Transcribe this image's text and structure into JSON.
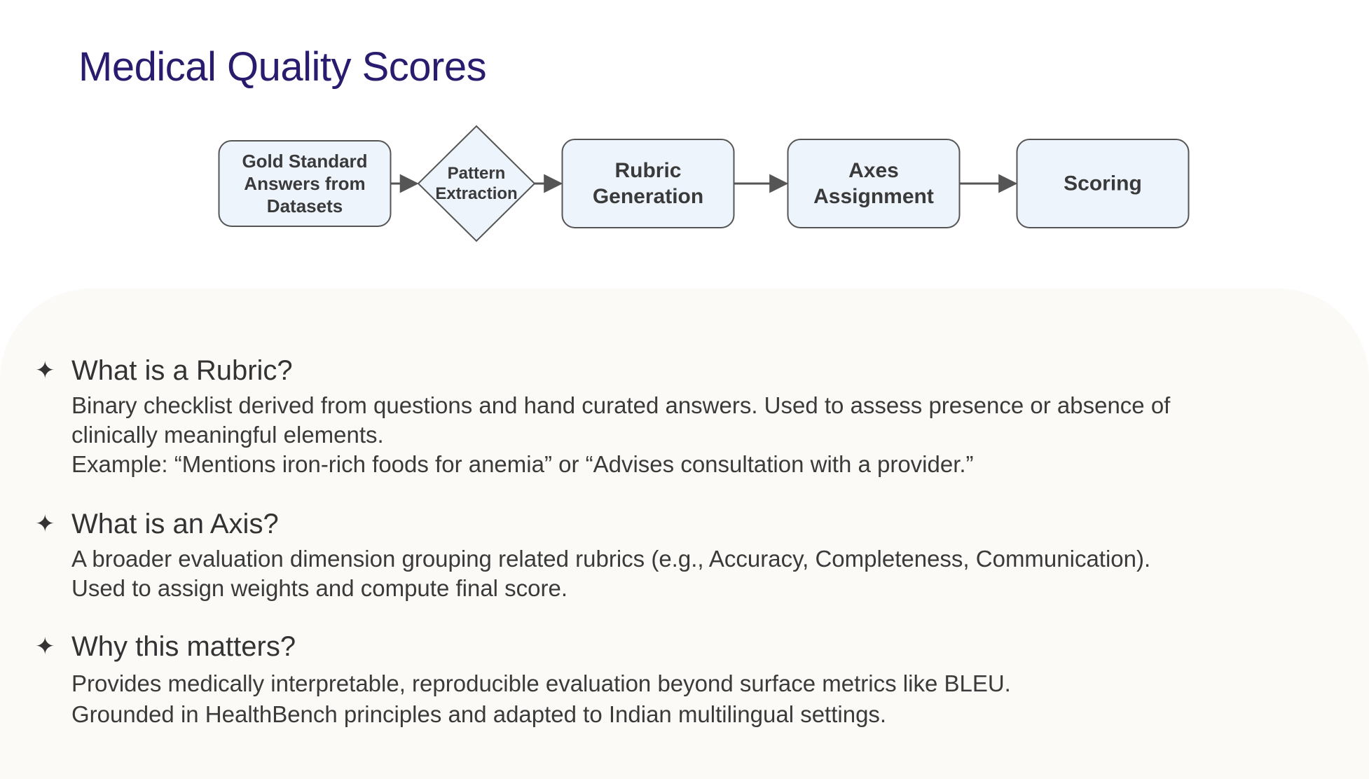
{
  "title": "Medical Quality Scores",
  "flow": {
    "nodes": [
      {
        "id": "gold",
        "shape": "box",
        "lines": [
          "Gold Standard",
          "Answers from",
          "Datasets"
        ]
      },
      {
        "id": "pattern",
        "shape": "diamond",
        "lines": [
          "Pattern",
          "Extraction"
        ]
      },
      {
        "id": "rubric",
        "shape": "box",
        "lines": [
          "Rubric",
          "Generation"
        ]
      },
      {
        "id": "axes",
        "shape": "box",
        "lines": [
          "Axes",
          "Assignment"
        ]
      },
      {
        "id": "scoring",
        "shape": "box",
        "lines": [
          "Scoring"
        ]
      }
    ],
    "node_fill": "#eef4fc",
    "node_stroke": "#555555"
  },
  "sections": [
    {
      "heading": "What is a Rubric?",
      "lines": [
        "Binary checklist derived from questions and hand curated answers. Used to assess presence or absence of",
        "clinically meaningful elements.",
        "Example: “Mentions iron-rich foods for anemia” or “Advises consultation with a provider.”"
      ]
    },
    {
      "heading": "What is an Axis?",
      "lines": [
        "A broader evaluation dimension grouping related rubrics (e.g., Accuracy, Completeness, Communication).",
        "Used to assign weights and compute final score."
      ]
    },
    {
      "heading": "Why this matters?",
      "lines": [
        "Provides medically interpretable, reproducible evaluation beyond surface metrics like BLEU.",
        "Grounded in HealthBench principles and adapted to Indian multilingual settings."
      ]
    }
  ],
  "colors": {
    "title": "#2a1b6e",
    "panel": "#fbfaf6",
    "text": "#3a3a3a"
  },
  "icons": {
    "bullet": "four-point-star-icon"
  }
}
